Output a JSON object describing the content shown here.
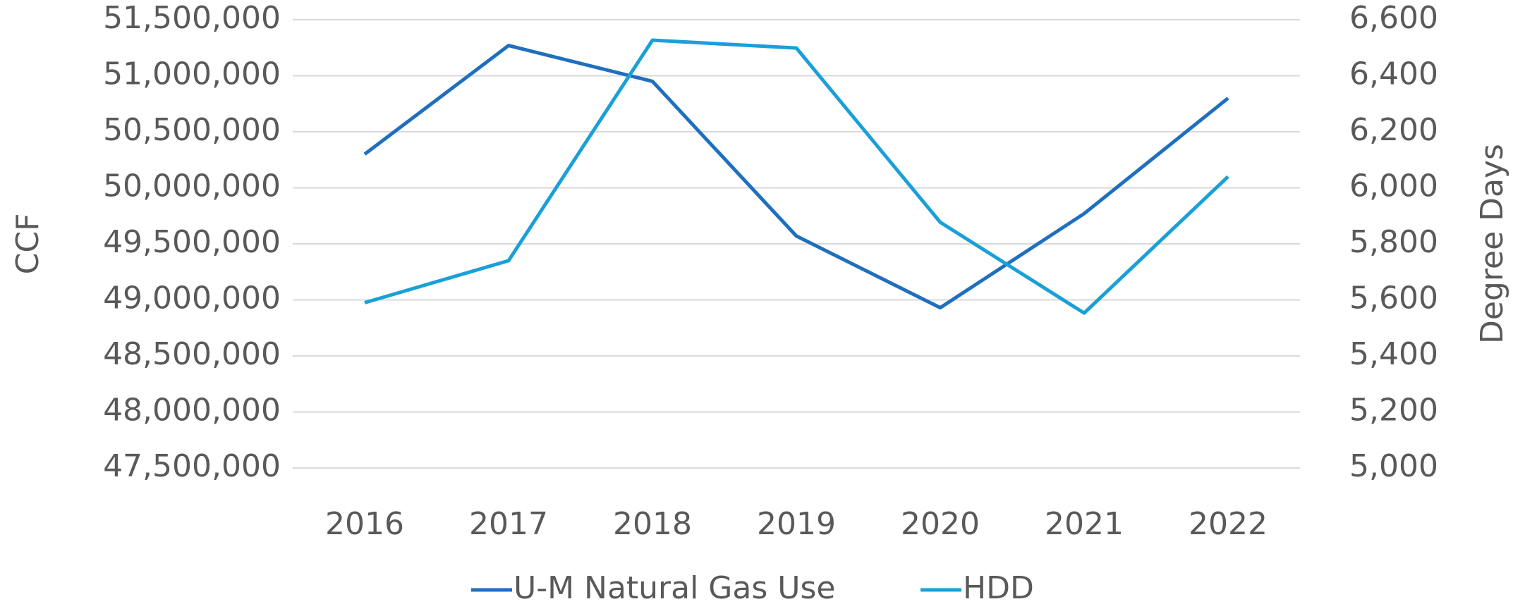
{
  "chart_data": {
    "type": "line",
    "y_label": "CCF",
    "y2_label": "Degree Days",
    "categories": [
      "2016",
      "2017",
      "2018",
      "2019",
      "2020",
      "2021",
      "2022"
    ],
    "series": [
      {
        "name": "U-M Natural Gas Use",
        "color": "#1f6fc0",
        "values": [
          50300000,
          51270000,
          50950000,
          49570000,
          48930000,
          49770000,
          50800000
        ]
      },
      {
        "name": "HDD",
        "color": "#1aa0d8",
        "axis": "y2",
        "values": [
          5590,
          5740,
          6527,
          6499,
          5877,
          5553,
          6040
        ]
      }
    ],
    "ylim": [
      47500000,
      51500000
    ],
    "yticks": [
      {
        "value": 47500000,
        "label": "47,500,000"
      },
      {
        "value": 48000000,
        "label": "48,000,000"
      },
      {
        "value": 48500000,
        "label": "48,500,000"
      },
      {
        "value": 49000000,
        "label": "49,000,000"
      },
      {
        "value": 49500000,
        "label": "49,500,000"
      },
      {
        "value": 50000000,
        "label": "50,000,000"
      },
      {
        "value": 50500000,
        "label": "50,500,000"
      },
      {
        "value": 51000000,
        "label": "51,000,000"
      },
      {
        "value": 51500000,
        "label": "51,500,000"
      }
    ],
    "y2lim": [
      5000,
      6600
    ],
    "y2ticks": [
      {
        "value": 5000,
        "label": "5,000"
      },
      {
        "value": 5200,
        "label": "5,200"
      },
      {
        "value": 5400,
        "label": "5,400"
      },
      {
        "value": 5600,
        "label": "5,600"
      },
      {
        "value": 5800,
        "label": "5,800"
      },
      {
        "value": 6000,
        "label": "6,000"
      },
      {
        "value": 6200,
        "label": "6,200"
      },
      {
        "value": 6400,
        "label": "6,400"
      },
      {
        "value": 6600,
        "label": "6,600"
      }
    ],
    "grid": true,
    "legend": "bottom"
  }
}
